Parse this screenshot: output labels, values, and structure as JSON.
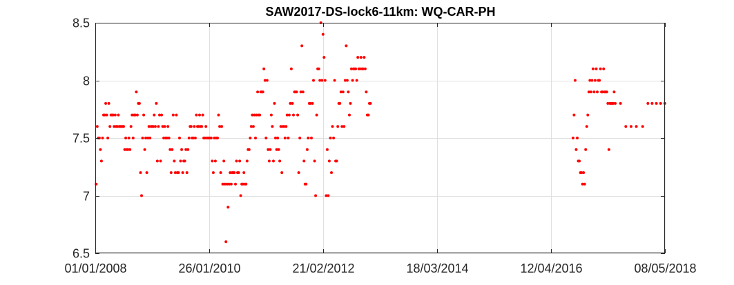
{
  "chart_data": {
    "type": "scatter",
    "title": "SAW2017-DS-lock6-11km: WQ-CAR-PH",
    "xlabel": "",
    "ylabel": "",
    "series_color": "#ff0000",
    "grid": true,
    "xlim": [
      "2008-01-01",
      "2018-05-08"
    ],
    "ylim": [
      6.5,
      8.5
    ],
    "x_ticks": [
      {
        "date": "2008-01-01",
        "label": "01/01/2008"
      },
      {
        "date": "2010-01-26",
        "label": "26/01/2010"
      },
      {
        "date": "2012-02-21",
        "label": "21/02/2012"
      },
      {
        "date": "2014-03-18",
        "label": "18/03/2014"
      },
      {
        "date": "2016-04-12",
        "label": "12/04/2016"
      },
      {
        "date": "2018-05-08",
        "label": "08/05/2018"
      }
    ],
    "y_ticks": [
      {
        "value": 6.5,
        "label": "6.5"
      },
      {
        "value": 7,
        "label": "7"
      },
      {
        "value": 7.5,
        "label": "7.5"
      },
      {
        "value": 8,
        "label": "8"
      },
      {
        "value": 8.5,
        "label": "8.5"
      }
    ],
    "points": [
      [
        "2008-01-07",
        7.1
      ],
      [
        "2008-01-14",
        7.6
      ],
      [
        "2008-01-21",
        7.5
      ],
      [
        "2008-01-28",
        7.5
      ],
      [
        "2008-02-04",
        7.4
      ],
      [
        "2008-02-11",
        7.3
      ],
      [
        "2008-02-18",
        7.5
      ],
      [
        "2008-02-25",
        7.7
      ],
      [
        "2008-03-03",
        7.7
      ],
      [
        "2008-03-10",
        7.8
      ],
      [
        "2008-03-17",
        7.7
      ],
      [
        "2008-03-24",
        7.5
      ],
      [
        "2008-03-31",
        7.8
      ],
      [
        "2008-04-07",
        7.6
      ],
      [
        "2008-04-14",
        7.7
      ],
      [
        "2008-04-21",
        7.7
      ],
      [
        "2008-04-28",
        7.7
      ],
      [
        "2008-05-05",
        7.6
      ],
      [
        "2008-05-12",
        7.7
      ],
      [
        "2008-05-19",
        7.6
      ],
      [
        "2008-05-26",
        7.6
      ],
      [
        "2008-06-02",
        7.7
      ],
      [
        "2008-06-09",
        7.6
      ],
      [
        "2008-06-16",
        7.6
      ],
      [
        "2008-06-23",
        7.6
      ],
      [
        "2008-06-30",
        7.6
      ],
      [
        "2008-07-07",
        7.6
      ],
      [
        "2008-07-14",
        7.4
      ],
      [
        "2008-07-21",
        7.5
      ],
      [
        "2008-07-28",
        7.4
      ],
      [
        "2008-08-04",
        7.4
      ],
      [
        "2008-08-11",
        7.5
      ],
      [
        "2008-08-18",
        7.4
      ],
      [
        "2008-08-25",
        7.6
      ],
      [
        "2008-09-01",
        7.7
      ],
      [
        "2008-09-08",
        7.5
      ],
      [
        "2008-09-15",
        7.7
      ],
      [
        "2008-09-22",
        7.7
      ],
      [
        "2008-09-29",
        7.9
      ],
      [
        "2008-10-06",
        7.7
      ],
      [
        "2008-10-13",
        7.8
      ],
      [
        "2008-10-20",
        7.8
      ],
      [
        "2008-10-27",
        7.2
      ],
      [
        "2008-11-03",
        7.0
      ],
      [
        "2008-11-10",
        7.5
      ],
      [
        "2008-11-17",
        7.7
      ],
      [
        "2008-11-24",
        7.4
      ],
      [
        "2008-12-01",
        7.5
      ],
      [
        "2008-12-08",
        7.2
      ],
      [
        "2008-12-15",
        7.5
      ],
      [
        "2008-12-22",
        7.6
      ],
      [
        "2008-12-29",
        7.5
      ],
      [
        "2009-01-05",
        7.6
      ],
      [
        "2009-01-12",
        7.6
      ],
      [
        "2009-01-19",
        7.6
      ],
      [
        "2009-01-26",
        7.7
      ],
      [
        "2009-02-02",
        7.6
      ],
      [
        "2009-02-09",
        7.8
      ],
      [
        "2009-02-16",
        7.3
      ],
      [
        "2009-02-23",
        7.6
      ],
      [
        "2009-03-02",
        7.7
      ],
      [
        "2009-03-09",
        7.3
      ],
      [
        "2009-03-16",
        7.7
      ],
      [
        "2009-03-23",
        7.6
      ],
      [
        "2009-03-30",
        7.5
      ],
      [
        "2009-04-06",
        7.6
      ],
      [
        "2009-04-13",
        7.5
      ],
      [
        "2009-04-20",
        7.5
      ],
      [
        "2009-04-27",
        7.6
      ],
      [
        "2009-05-04",
        7.5
      ],
      [
        "2009-05-11",
        7.4
      ],
      [
        "2009-05-18",
        7.2
      ],
      [
        "2009-05-25",
        7.4
      ],
      [
        "2009-06-01",
        7.7
      ],
      [
        "2009-06-08",
        7.3
      ],
      [
        "2009-06-15",
        7.2
      ],
      [
        "2009-06-22",
        7.7
      ],
      [
        "2009-06-29",
        7.2
      ],
      [
        "2009-07-06",
        7.2
      ],
      [
        "2009-07-13",
        7.5
      ],
      [
        "2009-07-20",
        7.3
      ],
      [
        "2009-07-27",
        7.4
      ],
      [
        "2009-08-03",
        7.2
      ],
      [
        "2009-08-10",
        7.3
      ],
      [
        "2009-08-17",
        7.3
      ],
      [
        "2009-08-24",
        7.4
      ],
      [
        "2009-08-31",
        7.2
      ],
      [
        "2009-09-07",
        7.4
      ],
      [
        "2009-09-14",
        7.5
      ],
      [
        "2009-09-21",
        7.6
      ],
      [
        "2009-09-28",
        7.6
      ],
      [
        "2009-10-05",
        7.5
      ],
      [
        "2009-10-12",
        7.5
      ],
      [
        "2009-10-19",
        7.6
      ],
      [
        "2009-10-26",
        7.5
      ],
      [
        "2009-11-02",
        7.7
      ],
      [
        "2009-11-09",
        7.6
      ],
      [
        "2009-11-16",
        7.6
      ],
      [
        "2009-11-23",
        7.7
      ],
      [
        "2009-11-30",
        7.6
      ],
      [
        "2009-12-07",
        7.6
      ],
      [
        "2009-12-14",
        7.7
      ],
      [
        "2009-12-21",
        7.5
      ],
      [
        "2009-12-28",
        7.5
      ],
      [
        "2010-01-04",
        7.6
      ],
      [
        "2010-01-11",
        7.5
      ],
      [
        "2010-01-18",
        7.5
      ],
      [
        "2010-01-25",
        7.5
      ],
      [
        "2010-02-01",
        7.5
      ],
      [
        "2010-02-08",
        7.5
      ],
      [
        "2010-02-15",
        7.3
      ],
      [
        "2010-02-22",
        7.2
      ],
      [
        "2010-03-01",
        7.5
      ],
      [
        "2010-03-08",
        7.3
      ],
      [
        "2010-03-15",
        7.5
      ],
      [
        "2010-03-22",
        7.5
      ],
      [
        "2010-03-29",
        7.7
      ],
      [
        "2010-04-05",
        7.6
      ],
      [
        "2010-04-12",
        7.2
      ],
      [
        "2010-04-19",
        7.6
      ],
      [
        "2010-04-26",
        7.1
      ],
      [
        "2010-05-03",
        7.3
      ],
      [
        "2010-05-10",
        7.1
      ],
      [
        "2010-05-17",
        6.6
      ],
      [
        "2010-05-24",
        7.1
      ],
      [
        "2010-05-31",
        6.9
      ],
      [
        "2010-06-07",
        7.1
      ],
      [
        "2010-06-14",
        7.2
      ],
      [
        "2010-06-21",
        7.1
      ],
      [
        "2010-06-28",
        7.2
      ],
      [
        "2010-07-05",
        7.2
      ],
      [
        "2010-07-12",
        7.2
      ],
      [
        "2010-07-19",
        7.1
      ],
      [
        "2010-07-26",
        7.3
      ],
      [
        "2010-08-02",
        7.2
      ],
      [
        "2010-08-09",
        7.2
      ],
      [
        "2010-08-16",
        7.3
      ],
      [
        "2010-08-23",
        7.0
      ],
      [
        "2010-08-30",
        7.1
      ],
      [
        "2010-09-06",
        7.1
      ],
      [
        "2010-09-13",
        7.2
      ],
      [
        "2010-09-20",
        7.1
      ],
      [
        "2010-09-27",
        7.1
      ],
      [
        "2010-10-04",
        7.3
      ],
      [
        "2010-10-11",
        7.4
      ],
      [
        "2010-10-18",
        7.4
      ],
      [
        "2010-10-25",
        7.5
      ],
      [
        "2010-11-01",
        7.6
      ],
      [
        "2010-11-08",
        7.7
      ],
      [
        "2010-11-15",
        7.6
      ],
      [
        "2010-11-22",
        7.7
      ],
      [
        "2010-11-29",
        7.5
      ],
      [
        "2010-12-06",
        7.7
      ],
      [
        "2010-12-13",
        7.9
      ],
      [
        "2010-12-20",
        7.7
      ],
      [
        "2010-12-27",
        7.7
      ],
      [
        "2011-01-03",
        7.9
      ],
      [
        "2011-01-10",
        7.9
      ],
      [
        "2011-01-17",
        7.9
      ],
      [
        "2011-01-24",
        8.1
      ],
      [
        "2011-01-31",
        8.0
      ],
      [
        "2011-02-07",
        7.5
      ],
      [
        "2011-02-14",
        8.0
      ],
      [
        "2011-02-21",
        7.4
      ],
      [
        "2011-02-28",
        7.3
      ],
      [
        "2011-03-07",
        7.4
      ],
      [
        "2011-03-14",
        7.7
      ],
      [
        "2011-03-21",
        7.6
      ],
      [
        "2011-03-28",
        7.3
      ],
      [
        "2011-04-04",
        7.8
      ],
      [
        "2011-04-11",
        7.5
      ],
      [
        "2011-04-18",
        7.4
      ],
      [
        "2011-04-25",
        7.5
      ],
      [
        "2011-05-02",
        7.4
      ],
      [
        "2011-05-09",
        7.3
      ],
      [
        "2011-05-16",
        7.6
      ],
      [
        "2011-05-23",
        7.2
      ],
      [
        "2011-05-30",
        7.6
      ],
      [
        "2011-06-06",
        7.6
      ],
      [
        "2011-06-13",
        7.5
      ],
      [
        "2011-06-20",
        7.6
      ],
      [
        "2011-06-27",
        7.7
      ],
      [
        "2011-07-04",
        7.5
      ],
      [
        "2011-07-11",
        7.7
      ],
      [
        "2011-07-18",
        7.8
      ],
      [
        "2011-07-25",
        8.1
      ],
      [
        "2011-08-01",
        7.8
      ],
      [
        "2011-08-08",
        7.7
      ],
      [
        "2011-08-15",
        7.9
      ],
      [
        "2011-08-22",
        7.9
      ],
      [
        "2011-08-29",
        7.9
      ],
      [
        "2011-09-05",
        7.7
      ],
      [
        "2011-09-12",
        7.2
      ],
      [
        "2011-09-19",
        7.5
      ],
      [
        "2011-09-26",
        7.9
      ],
      [
        "2011-10-03",
        8.3
      ],
      [
        "2011-10-10",
        7.9
      ],
      [
        "2011-10-17",
        7.3
      ],
      [
        "2011-10-24",
        7.1
      ],
      [
        "2011-10-31",
        7.1
      ],
      [
        "2011-11-07",
        7.4
      ],
      [
        "2011-11-14",
        7.5
      ],
      [
        "2011-11-21",
        7.8
      ],
      [
        "2011-11-28",
        7.8
      ],
      [
        "2011-12-05",
        7.5
      ],
      [
        "2011-12-12",
        7.8
      ],
      [
        "2011-12-19",
        8.0
      ],
      [
        "2011-12-26",
        7.3
      ],
      [
        "2012-01-02",
        7.0
      ],
      [
        "2012-01-09",
        7.7
      ],
      [
        "2012-01-16",
        8.1
      ],
      [
        "2012-01-23",
        8.1
      ],
      [
        "2012-01-30",
        8.0
      ],
      [
        "2012-02-06",
        8.5
      ],
      [
        "2012-02-13",
        8.0
      ],
      [
        "2012-02-20",
        8.4
      ],
      [
        "2012-02-27",
        8.2
      ],
      [
        "2012-03-05",
        8.0
      ],
      [
        "2012-03-12",
        7.0
      ],
      [
        "2012-03-19",
        7.4
      ],
      [
        "2012-03-26",
        7.0
      ],
      [
        "2012-04-02",
        7.3
      ],
      [
        "2012-04-09",
        7.5
      ],
      [
        "2012-04-16",
        7.2
      ],
      [
        "2012-04-23",
        7.6
      ],
      [
        "2012-04-30",
        7.5
      ],
      [
        "2012-05-07",
        8.0
      ],
      [
        "2012-05-14",
        7.3
      ],
      [
        "2012-05-21",
        7.3
      ],
      [
        "2012-05-28",
        7.6
      ],
      [
        "2012-06-04",
        7.8
      ],
      [
        "2012-06-11",
        7.8
      ],
      [
        "2012-06-18",
        7.9
      ],
      [
        "2012-06-25",
        7.6
      ],
      [
        "2012-07-02",
        7.9
      ],
      [
        "2012-07-09",
        7.6
      ],
      [
        "2012-07-16",
        8.0
      ],
      [
        "2012-07-23",
        8.3
      ],
      [
        "2012-07-30",
        8.0
      ],
      [
        "2012-08-06",
        7.9
      ],
      [
        "2012-08-13",
        7.7
      ],
      [
        "2012-08-20",
        7.8
      ],
      [
        "2012-08-27",
        8.1
      ],
      [
        "2012-09-03",
        8.0
      ],
      [
        "2012-09-10",
        8.1
      ],
      [
        "2012-09-17",
        8.1
      ],
      [
        "2012-09-24",
        8.1
      ],
      [
        "2012-10-01",
        8.0
      ],
      [
        "2012-10-08",
        8.2
      ],
      [
        "2012-10-15",
        8.1
      ],
      [
        "2012-10-22",
        8.1
      ],
      [
        "2012-10-29",
        8.2
      ],
      [
        "2012-11-05",
        8.1
      ],
      [
        "2012-11-12",
        8.1
      ],
      [
        "2012-11-19",
        8.2
      ],
      [
        "2012-11-26",
        8.1
      ],
      [
        "2012-12-03",
        7.9
      ],
      [
        "2012-12-10",
        7.7
      ],
      [
        "2012-12-17",
        7.7
      ],
      [
        "2012-12-24",
        7.8
      ],
      [
        "2012-12-31",
        7.8
      ],
      [
        "2016-09-05",
        7.5
      ],
      [
        "2016-09-12",
        7.7
      ],
      [
        "2016-09-19",
        8.0
      ],
      [
        "2016-09-26",
        7.4
      ],
      [
        "2016-10-03",
        7.5
      ],
      [
        "2016-10-10",
        7.3
      ],
      [
        "2016-10-17",
        7.3
      ],
      [
        "2016-10-24",
        7.2
      ],
      [
        "2016-10-31",
        7.2
      ],
      [
        "2016-11-07",
        7.1
      ],
      [
        "2016-11-14",
        7.2
      ],
      [
        "2016-11-21",
        7.1
      ],
      [
        "2016-11-28",
        7.4
      ],
      [
        "2016-12-05",
        7.6
      ],
      [
        "2016-12-12",
        7.7
      ],
      [
        "2016-12-19",
        7.9
      ],
      [
        "2016-12-26",
        8.0
      ],
      [
        "2017-01-02",
        7.9
      ],
      [
        "2017-01-09",
        8.0
      ],
      [
        "2017-01-16",
        8.1
      ],
      [
        "2017-01-23",
        7.9
      ],
      [
        "2017-01-30",
        8.0
      ],
      [
        "2017-02-06",
        8.1
      ],
      [
        "2017-02-13",
        7.9
      ],
      [
        "2017-02-20",
        8.0
      ],
      [
        "2017-02-27",
        8.0
      ],
      [
        "2017-03-06",
        8.1
      ],
      [
        "2017-03-13",
        7.9
      ],
      [
        "2017-03-20",
        7.9
      ],
      [
        "2017-03-27",
        8.1
      ],
      [
        "2017-04-03",
        7.9
      ],
      [
        "2017-04-10",
        7.9
      ],
      [
        "2017-04-17",
        7.9
      ],
      [
        "2017-04-24",
        7.8
      ],
      [
        "2017-05-01",
        7.4
      ],
      [
        "2017-05-08",
        7.8
      ],
      [
        "2017-05-15",
        7.8
      ],
      [
        "2017-05-22",
        7.8
      ],
      [
        "2017-05-29",
        7.8
      ],
      [
        "2017-06-05",
        7.9
      ],
      [
        "2017-06-12",
        7.8
      ],
      [
        "2017-07-17",
        7.8
      ],
      [
        "2017-08-21",
        7.6
      ],
      [
        "2017-09-25",
        7.6
      ],
      [
        "2017-10-30",
        7.6
      ],
      [
        "2017-12-11",
        7.6
      ],
      [
        "2018-01-15",
        7.8
      ],
      [
        "2018-02-12",
        7.8
      ],
      [
        "2018-03-12",
        7.8
      ],
      [
        "2018-04-09",
        7.8
      ],
      [
        "2018-05-07",
        7.8
      ]
    ]
  }
}
